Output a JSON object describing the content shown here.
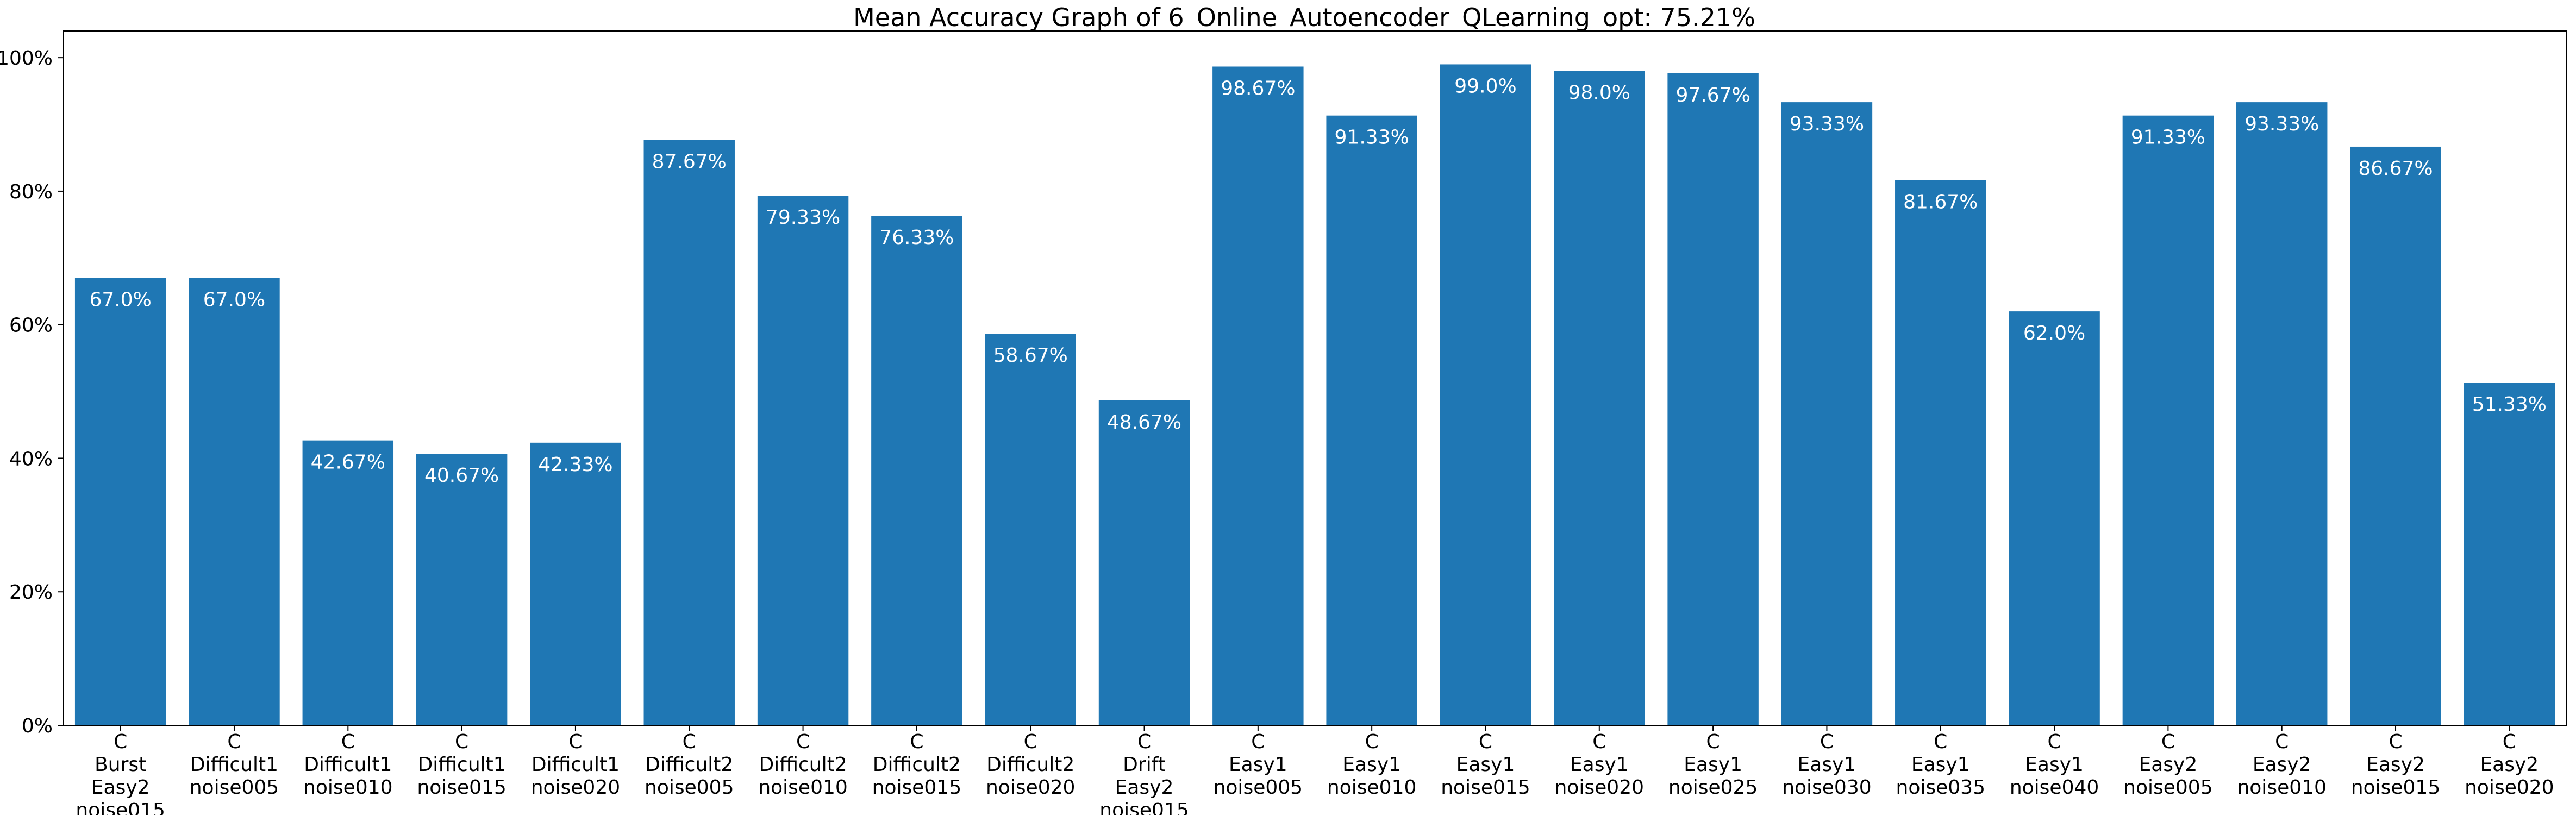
{
  "chart_data": {
    "type": "bar",
    "title": "Mean Accuracy Graph of 6_Online_Autoencoder_QLearning_opt: 75.21%",
    "xlabel": "",
    "ylabel": "",
    "ylim": [
      0,
      100
    ],
    "yticks": [
      "0%",
      "20%",
      "40%",
      "60%",
      "80%",
      "100%"
    ],
    "grid": false,
    "bar_color": "#1f77b4",
    "categories": [
      [
        "C",
        "Burst",
        "Easy2",
        "noise015"
      ],
      [
        "C",
        "Difficult1",
        "noise005"
      ],
      [
        "C",
        "Difficult1",
        "noise010"
      ],
      [
        "C",
        "Difficult1",
        "noise015"
      ],
      [
        "C",
        "Difficult1",
        "noise020"
      ],
      [
        "C",
        "Difficult2",
        "noise005"
      ],
      [
        "C",
        "Difficult2",
        "noise010"
      ],
      [
        "C",
        "Difficult2",
        "noise015"
      ],
      [
        "C",
        "Difficult2",
        "noise020"
      ],
      [
        "C",
        "Drift",
        "Easy2",
        "noise015"
      ],
      [
        "C",
        "Easy1",
        "noise005"
      ],
      [
        "C",
        "Easy1",
        "noise010"
      ],
      [
        "C",
        "Easy1",
        "noise015"
      ],
      [
        "C",
        "Easy1",
        "noise020"
      ],
      [
        "C",
        "Easy1",
        "noise025"
      ],
      [
        "C",
        "Easy1",
        "noise030"
      ],
      [
        "C",
        "Easy1",
        "noise035"
      ],
      [
        "C",
        "Easy1",
        "noise040"
      ],
      [
        "C",
        "Easy2",
        "noise005"
      ],
      [
        "C",
        "Easy2",
        "noise010"
      ],
      [
        "C",
        "Easy2",
        "noise015"
      ],
      [
        "C",
        "Easy2",
        "noise020"
      ]
    ],
    "values": [
      67.0,
      67.0,
      42.67,
      40.67,
      42.33,
      87.67,
      79.33,
      76.33,
      58.67,
      48.67,
      98.67,
      91.33,
      99.0,
      98.0,
      97.67,
      93.33,
      81.67,
      62.0,
      91.33,
      93.33,
      86.67,
      51.33
    ],
    "data_labels": [
      "67.0%",
      "67.0%",
      "42.67%",
      "40.67%",
      "42.33%",
      "87.67%",
      "79.33%",
      "76.33%",
      "58.67%",
      "48.67%",
      "98.67%",
      "91.33%",
      "99.0%",
      "98.0%",
      "97.67%",
      "93.33%",
      "81.67%",
      "62.0%",
      "91.33%",
      "93.33%",
      "86.67%",
      "51.33%"
    ]
  }
}
